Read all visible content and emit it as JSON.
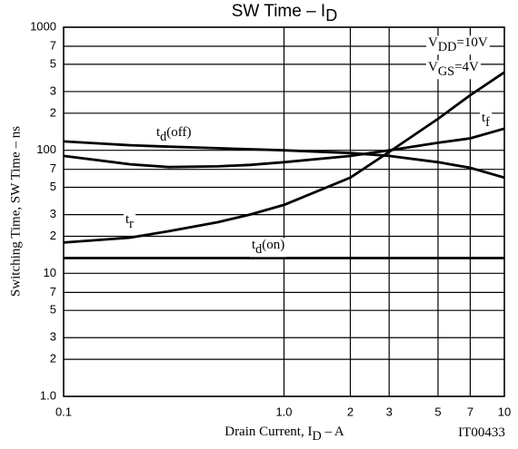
{
  "chart_data": {
    "type": "line",
    "title": [
      "SW Time  –  I",
      "D"
    ],
    "x_label": [
      "Drain Current, I",
      "D",
      "  –  A"
    ],
    "y_label": "Switching Time, SW Time  –  ns",
    "log_x": true,
    "log_y": true,
    "grid": true,
    "xlim": [
      0.1,
      10
    ],
    "ylim": [
      1,
      1000
    ],
    "xticks": [
      {
        "value": 0.1,
        "label": "0.1"
      },
      2,
      3,
      5,
      7,
      {
        "value": 1,
        "label": "1.0"
      },
      {
        "value": 20,
        "label": "2"
      },
      {
        "value": 30,
        "label": "3"
      },
      {
        "value": 50,
        "label": "5"
      },
      {
        "value": 70,
        "label": "7"
      },
      10
    ],
    "yticks": [
      {
        "value": 1,
        "label": "1.0"
      },
      2,
      3,
      5,
      7,
      10,
      {
        "value": 20,
        "label": "2"
      },
      {
        "value": 30,
        "label": "3"
      },
      {
        "value": 50,
        "label": "5"
      },
      {
        "value": 70,
        "label": "7"
      },
      100,
      {
        "value": 200,
        "label": "2"
      },
      {
        "value": 300,
        "label": "3"
      },
      {
        "value": 500,
        "label": "5"
      },
      {
        "value": 700,
        "label": "7"
      },
      1000
    ],
    "x": [
      0.1,
      0.2,
      0.3,
      0.5,
      0.7,
      1,
      2,
      3,
      5,
      7,
      10
    ],
    "series": [
      {
        "label": [
          "t",
          "d",
          "(off)"
        ],
        "color": "#000000",
        "values": [
          118,
          110,
          107,
          104,
          102,
          100,
          95,
          90,
          80,
          72,
          60
        ]
      },
      {
        "label": [
          "t",
          "f"
        ],
        "color": "#000000",
        "values": [
          90,
          77,
          73,
          74,
          76,
          80,
          90,
          100,
          115,
          125,
          150
        ]
      },
      {
        "label": [
          "t",
          "r"
        ],
        "color": "#000000",
        "values": [
          17.8,
          19.5,
          22,
          26,
          30,
          36,
          60,
          97,
          180,
          280,
          430
        ]
      },
      {
        "label": [
          "t",
          "d",
          "(on)"
        ],
        "color": "#000000",
        "values": [
          13.3,
          13.3,
          13.3,
          13.3,
          13.3,
          13.3,
          13.3,
          13.3,
          13.3,
          13.3,
          13.3
        ]
      }
    ],
    "annotations": [
      [
        "V",
        "DD",
        "=10V"
      ],
      [
        "V",
        "GS",
        "=4V"
      ],
      [
        "IT00433"
      ]
    ]
  }
}
